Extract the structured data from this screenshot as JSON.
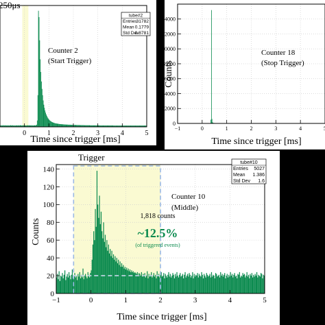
{
  "colors": {
    "histogram": "#0a8a4e",
    "trigger_window": "#fafad2",
    "window_border": "#9ab8e4",
    "page_background": "#000000"
  },
  "chart_data": [
    {
      "type": "bar",
      "panel_id": "p1",
      "title": "",
      "xlabel": "Time since trigger [ms]",
      "ylabel": "",
      "xlim": [
        -1,
        5
      ],
      "ylim": [
        0,
        1150
      ],
      "xticks": [
        "0",
        "1",
        "2",
        "3",
        "4",
        "5"
      ],
      "yticks": [],
      "grid": true,
      "top_label": "250μs",
      "annotation_lines": [
        "Counter 2",
        "(Start Trigger)"
      ],
      "stats": {
        "name": "tube#2",
        "rows": [
          [
            "Entries",
            "31782"
          ],
          [
            "Mean",
            "0.1779"
          ],
          [
            "Std Dev",
            "0.8781"
          ]
        ]
      },
      "trigger_window": [
        -0.09,
        0.16
      ],
      "bin_edges": [
        -1.0,
        5.0
      ],
      "values": [
        14,
        12,
        15,
        11,
        13,
        16,
        12,
        14,
        13,
        15,
        12,
        14,
        11,
        15,
        13,
        12,
        14,
        16,
        13,
        12,
        15,
        14,
        13,
        12,
        14,
        11,
        13,
        15,
        12,
        14,
        13,
        15,
        12,
        14,
        16,
        13,
        12,
        14,
        13,
        15,
        12,
        11,
        14,
        13,
        12,
        15,
        14,
        13,
        16,
        12,
        14,
        13,
        15,
        12,
        14,
        13,
        12,
        15,
        14,
        13,
        16,
        20,
        60,
        300,
        1100,
        1040,
        820,
        640,
        520,
        430,
        360,
        300,
        250,
        210,
        180,
        155,
        135,
        118,
        104,
        92,
        82,
        74,
        67,
        61,
        56,
        52,
        48,
        45,
        42,
        40,
        38,
        36,
        34,
        33,
        32,
        31,
        30,
        29,
        28,
        27,
        26,
        26,
        25,
        25,
        24,
        24,
        23,
        23,
        22,
        22,
        22,
        21,
        21,
        21,
        20,
        20,
        20,
        20,
        19,
        19,
        19,
        19,
        18,
        18,
        18,
        18,
        18,
        18,
        17,
        17,
        17,
        17,
        17,
        17,
        16,
        16,
        16,
        16,
        16,
        16,
        16,
        15,
        15,
        15,
        15,
        15,
        15,
        15,
        15,
        15,
        15,
        14,
        14,
        14,
        14,
        14,
        14,
        14,
        14,
        14,
        14,
        14,
        14,
        14,
        14,
        14,
        14,
        13,
        13,
        13,
        13,
        13,
        13,
        13,
        13,
        13,
        13,
        13,
        13,
        13,
        13,
        13,
        13,
        13,
        13,
        13,
        13,
        13,
        13,
        13,
        12,
        12,
        12,
        12,
        12,
        12,
        12,
        12,
        12,
        12,
        12,
        12,
        12,
        12,
        12,
        12,
        12,
        12,
        12,
        12,
        12,
        12,
        12,
        12,
        12,
        12,
        12,
        12,
        12,
        12,
        12,
        12,
        12,
        12,
        12,
        12,
        12,
        12,
        12,
        12,
        12,
        12,
        12,
        12,
        12,
        12,
        12,
        12,
        12,
        12,
        12,
        12,
        12,
        12,
        12,
        12
      ]
    },
    {
      "type": "bar",
      "panel_id": "p2",
      "title": "",
      "xlabel": "Time since trigger [ms]",
      "ylabel": "Counts",
      "xlim": [
        -1,
        5
      ],
      "ylim": [
        0,
        16000
      ],
      "xticks": [
        "−1",
        "0",
        "1",
        "2",
        "3",
        "4",
        "5"
      ],
      "yticks": [
        "0",
        "2000",
        "4000",
        "6000",
        "8000",
        "10000",
        "12000",
        "14000"
      ],
      "grid": true,
      "annotation_lines": [
        "Counter 18",
        "(Stop Trigger)"
      ],
      "bin_edges": [
        -1.0,
        5.0
      ],
      "values": [
        40,
        38,
        45,
        42,
        40,
        44,
        39,
        41,
        43,
        40,
        42,
        38,
        41,
        44,
        40,
        42,
        39,
        43,
        41,
        40,
        44,
        42,
        38,
        41,
        40,
        43,
        42,
        39,
        41,
        44,
        40,
        42,
        38,
        41,
        43,
        40,
        42,
        39,
        44,
        41,
        40,
        42,
        43,
        38,
        41,
        40,
        42,
        44,
        39,
        41,
        43,
        40,
        42,
        38,
        41,
        44,
        40,
        42,
        39,
        43,
        41,
        500,
        15200,
        600,
        150,
        80,
        60,
        55,
        50,
        48,
        46,
        44,
        43,
        42,
        41,
        40,
        40,
        40,
        40,
        40,
        40,
        40,
        40,
        40,
        40,
        40,
        40,
        40,
        40,
        40,
        40,
        40,
        40,
        40,
        40,
        40,
        40,
        40,
        40,
        40,
        40,
        40,
        40,
        40,
        40,
        40,
        40,
        40,
        40,
        40,
        40,
        40,
        40,
        40,
        40,
        40,
        40,
        40,
        40,
        40,
        40,
        40,
        40,
        40,
        40,
        40,
        40,
        40,
        40,
        40,
        40,
        40,
        40,
        40,
        40,
        40,
        40,
        40,
        40,
        40,
        40,
        40,
        40,
        40,
        40,
        40,
        40,
        40,
        40,
        40,
        40,
        40,
        40,
        40,
        40,
        40,
        40,
        40,
        40,
        40,
        40,
        40,
        40,
        40,
        40,
        40,
        40,
        40,
        40,
        40,
        40,
        40,
        40,
        40,
        40,
        40,
        40,
        40,
        40,
        40,
        40,
        40,
        40,
        40,
        40,
        40,
        40,
        40,
        40,
        40,
        40,
        40,
        40,
        40,
        40,
        40,
        40,
        40,
        40,
        40,
        40,
        40,
        40,
        40,
        40,
        40,
        40,
        40,
        40,
        40,
        40,
        40,
        40,
        40,
        40,
        40,
        40,
        40,
        40,
        40,
        40,
        40,
        40,
        40,
        40,
        40,
        40,
        40,
        40,
        40,
        40,
        40,
        40,
        40,
        40,
        40,
        40,
        40,
        40,
        40,
        40,
        40,
        40,
        40,
        40,
        40,
        40,
        40,
        40,
        40,
        40,
        40,
        40,
        40,
        40,
        40,
        40,
        40,
        40,
        40,
        40,
        40,
        40,
        40,
        40,
        40,
        40,
        40,
        40,
        40,
        40,
        40
      ]
    },
    {
      "type": "bar",
      "panel_id": "p3",
      "title": "",
      "xlabel": "Time since trigger [ms]",
      "ylabel": "Counts",
      "xlim": [
        -1,
        5
      ],
      "ylim": [
        0,
        145
      ],
      "xticks": [
        "−1",
        "0",
        "1",
        "2",
        "3",
        "4",
        "5"
      ],
      "yticks": [
        "0",
        "20",
        "40",
        "60",
        "80",
        "100",
        "120",
        "140"
      ],
      "grid": true,
      "top_label": "Trigger",
      "annotation_lines": [
        "Counter 10",
        "(Middle)"
      ],
      "counts_label": "1,818 counts",
      "percent_label": "~12.5%",
      "percent_sublabel": "(of triggered events)",
      "stats": {
        "name": "tube#10",
        "rows": [
          [
            "Entries",
            "5027"
          ],
          [
            "Mean",
            "1.386"
          ],
          [
            "Std Dev",
            "1.6"
          ]
        ]
      },
      "trigger_window": [
        -0.5,
        2.0
      ],
      "baseline_level": 20,
      "bin_edges": [
        -1.0,
        5.0
      ],
      "values": [
        18,
        22,
        16,
        25,
        14,
        20,
        19,
        23,
        17,
        21,
        26,
        15,
        19,
        22,
        18,
        24,
        20,
        16,
        21,
        27,
        17,
        19,
        23,
        18,
        20,
        15,
        22,
        19,
        24,
        17,
        21,
        18,
        28,
        16,
        20,
        22,
        19,
        17,
        24,
        21,
        18,
        23,
        26,
        38,
        55,
        70,
        60,
        95,
        75,
        138,
        100,
        85,
        110,
        78,
        92,
        70,
        62,
        80,
        58,
        66,
        52,
        60,
        48,
        55,
        45,
        50,
        42,
        48,
        40,
        44,
        38,
        42,
        36,
        40,
        34,
        38,
        32,
        36,
        30,
        34,
        30,
        32,
        28,
        30,
        27,
        29,
        26,
        28,
        25,
        27,
        24,
        26,
        24,
        25,
        23,
        24,
        23,
        22,
        24,
        21,
        23,
        22,
        20,
        24,
        19,
        22,
        21,
        23,
        18,
        20,
        25,
        17,
        22,
        19,
        21,
        24,
        18,
        20,
        23,
        19,
        21,
        17,
        25,
        20,
        22,
        18,
        21,
        24,
        19,
        20,
        23,
        17,
        22,
        20,
        18,
        21,
        24,
        19,
        22,
        18,
        20,
        23,
        21,
        17,
        22,
        19,
        24,
        20,
        18,
        21,
        23,
        19,
        20,
        22,
        17,
        21,
        24,
        18,
        20,
        22,
        19,
        23,
        21,
        18,
        20,
        24,
        17,
        22,
        19,
        21,
        20,
        23,
        18,
        22,
        20,
        19,
        24,
        21,
        17,
        22,
        20,
        18,
        23,
        21,
        19,
        20,
        22,
        18,
        24,
        19,
        21,
        20,
        17,
        23,
        22,
        19,
        20,
        21,
        18,
        24,
        20,
        22,
        19,
        21,
        23,
        17,
        20,
        22,
        18,
        21,
        19,
        24,
        20,
        22,
        18,
        21,
        23,
        19,
        20,
        17,
        22,
        21,
        24,
        18,
        20,
        19,
        23,
        21,
        22,
        18,
        20,
        24,
        19,
        21,
        17,
        22,
        20,
        23,
        18,
        21,
        19,
        22,
        20,
        24,
        18,
        21,
        20,
        19,
        23,
        22,
        17,
        21,
        20
      ]
    }
  ]
}
